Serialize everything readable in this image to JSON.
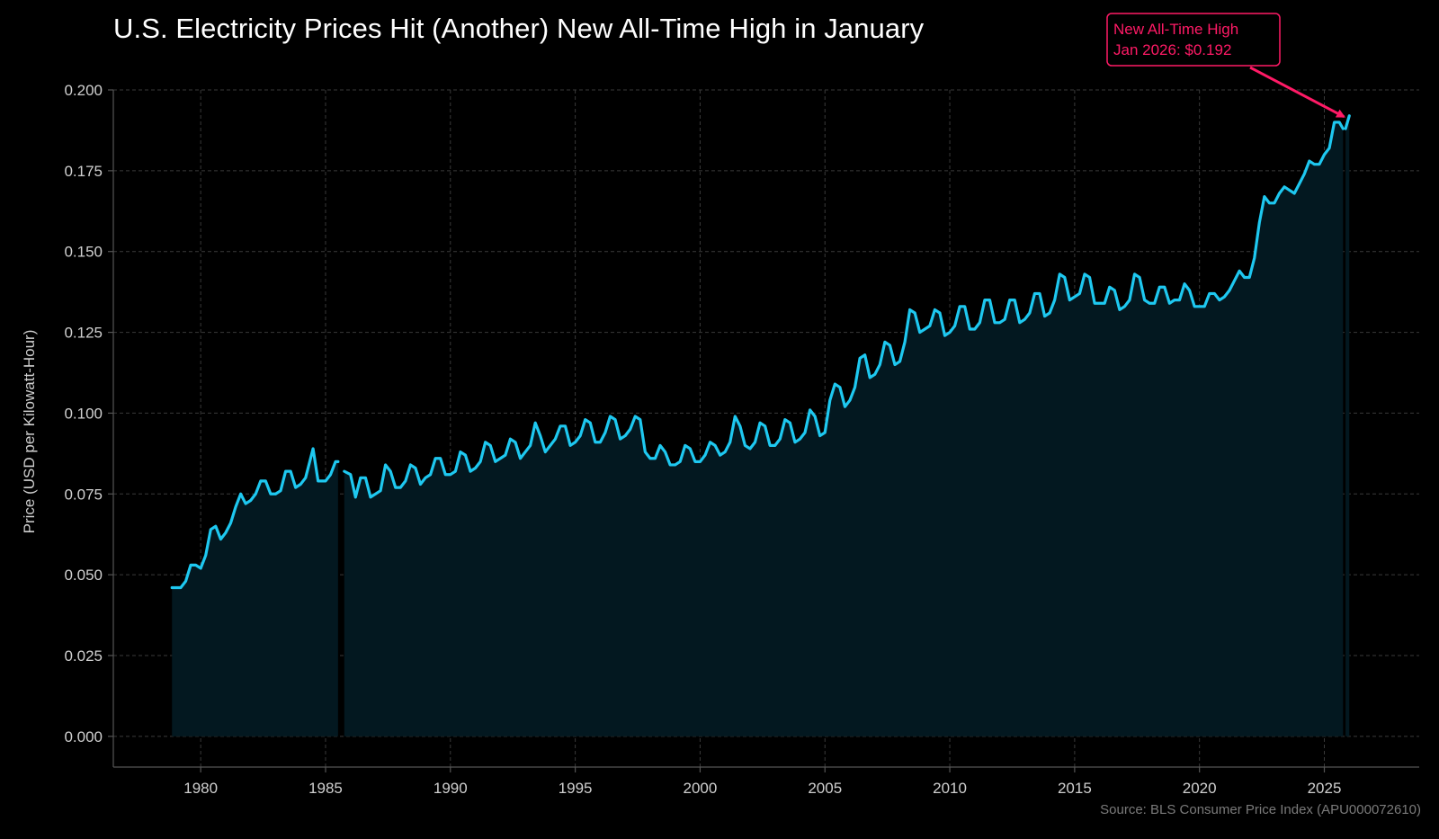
{
  "title": "U.S. Electricity Prices Hit (Another) New All-Time High in January",
  "source": "Source: BLS Consumer Price Index (APU000072610)",
  "annotation": {
    "line1": "New All-Time High",
    "line2": "Jan 2026: $0.192",
    "color": "#ff1a66",
    "x": 2026.0,
    "y": 0.192
  },
  "colors": {
    "line": "#1ec8f0",
    "fill": "#031820",
    "grid": "#3a3a3a",
    "axis": "#555555",
    "text": "#cfcfcf"
  },
  "chart_data": {
    "type": "line",
    "title": "U.S. Electricity Prices Hit (Another) New All-Time High in January",
    "xlabel": "",
    "ylabel": "Price (USD per Kilowatt-Hour)",
    "xlim": [
      1976.5,
      2028.8
    ],
    "ylim": [
      -0.0095,
      0.2
    ],
    "grid": true,
    "x_ticks": [
      1980,
      1985,
      1990,
      1995,
      2000,
      2005,
      2010,
      2015,
      2020,
      2025
    ],
    "y_ticks": [
      0.0,
      0.025,
      0.05,
      0.075,
      0.1,
      0.125,
      0.15,
      0.175,
      0.2
    ],
    "y_tick_labels": [
      "0.000",
      "0.025",
      "0.050",
      "0.075",
      "0.100",
      "0.125",
      "0.150",
      "0.175",
      "0.200"
    ],
    "gaps": [
      [
        1985.5,
        1985.75
      ],
      [
        2025.75,
        2025.85
      ]
    ],
    "series": [
      {
        "type": "line_with_fill",
        "x": [
          1978.85,
          1979.2,
          1979.4,
          1979.6,
          1979.8,
          1980.0,
          1980.2,
          1980.4,
          1980.6,
          1980.8,
          1981.0,
          1981.2,
          1981.4,
          1981.6,
          1981.8,
          1982.0,
          1982.2,
          1982.4,
          1982.6,
          1982.8,
          1983.0,
          1983.2,
          1983.4,
          1983.6,
          1983.8,
          1984.0,
          1984.2,
          1984.5,
          1984.7,
          1985.0,
          1985.2,
          1985.4,
          1985.5,
          1985.75,
          1986.0,
          1986.2,
          1986.4,
          1986.6,
          1986.8,
          1987.0,
          1987.2,
          1987.4,
          1987.6,
          1987.8,
          1988.0,
          1988.2,
          1988.4,
          1988.6,
          1988.8,
          1989.0,
          1989.2,
          1989.4,
          1989.6,
          1989.8,
          1990.0,
          1990.2,
          1990.4,
          1990.6,
          1990.8,
          1991.0,
          1991.2,
          1991.4,
          1991.6,
          1991.8,
          1992.0,
          1992.2,
          1992.4,
          1992.6,
          1992.8,
          1993.0,
          1993.2,
          1993.4,
          1993.6,
          1993.8,
          1994.0,
          1994.2,
          1994.4,
          1994.6,
          1994.8,
          1995.0,
          1995.2,
          1995.4,
          1995.6,
          1995.8,
          1996.0,
          1996.2,
          1996.4,
          1996.6,
          1996.8,
          1997.0,
          1997.2,
          1997.4,
          1997.6,
          1997.8,
          1998.0,
          1998.2,
          1998.4,
          1998.6,
          1998.8,
          1999.0,
          1999.2,
          1999.4,
          1999.6,
          1999.8,
          2000.0,
          2000.2,
          2000.4,
          2000.6,
          2000.8,
          2001.0,
          2001.2,
          2001.4,
          2001.6,
          2001.8,
          2002.0,
          2002.2,
          2002.4,
          2002.6,
          2002.8,
          2003.0,
          2003.2,
          2003.4,
          2003.6,
          2003.8,
          2004.0,
          2004.2,
          2004.4,
          2004.6,
          2004.8,
          2005.0,
          2005.2,
          2005.4,
          2005.6,
          2005.8,
          2006.0,
          2006.2,
          2006.4,
          2006.6,
          2006.8,
          2007.0,
          2007.2,
          2007.4,
          2007.6,
          2007.8,
          2008.0,
          2008.2,
          2008.4,
          2008.6,
          2008.8,
          2009.0,
          2009.2,
          2009.4,
          2009.6,
          2009.8,
          2010.0,
          2010.2,
          2010.4,
          2010.6,
          2010.8,
          2011.0,
          2011.2,
          2011.4,
          2011.6,
          2011.8,
          2012.0,
          2012.2,
          2012.4,
          2012.6,
          2012.8,
          2013.0,
          2013.2,
          2013.4,
          2013.6,
          2013.8,
          2014.0,
          2014.2,
          2014.4,
          2014.6,
          2014.8,
          2015.0,
          2015.2,
          2015.4,
          2015.6,
          2015.8,
          2016.0,
          2016.2,
          2016.4,
          2016.6,
          2016.8,
          2017.0,
          2017.2,
          2017.4,
          2017.6,
          2017.8,
          2018.0,
          2018.2,
          2018.4,
          2018.6,
          2018.8,
          2019.0,
          2019.2,
          2019.4,
          2019.6,
          2019.8,
          2020.0,
          2020.2,
          2020.4,
          2020.6,
          2020.8,
          2021.0,
          2021.2,
          2021.4,
          2021.6,
          2021.8,
          2022.0,
          2022.2,
          2022.4,
          2022.6,
          2022.8,
          2023.0,
          2023.2,
          2023.4,
          2023.6,
          2023.8,
          2024.0,
          2024.2,
          2024.4,
          2024.6,
          2024.8,
          2025.0,
          2025.2,
          2025.4,
          2025.6,
          2025.75,
          2025.85,
          2026.0
        ],
        "y": [
          0.046,
          0.046,
          0.048,
          0.053,
          0.053,
          0.052,
          0.056,
          0.064,
          0.065,
          0.061,
          0.063,
          0.066,
          0.071,
          0.075,
          0.072,
          0.073,
          0.075,
          0.079,
          0.079,
          0.075,
          0.075,
          0.076,
          0.082,
          0.082,
          0.077,
          0.078,
          0.08,
          0.089,
          0.079,
          0.079,
          0.081,
          0.085,
          0.085,
          0.082,
          0.081,
          0.074,
          0.08,
          0.08,
          0.074,
          0.075,
          0.076,
          0.084,
          0.082,
          0.077,
          0.077,
          0.079,
          0.084,
          0.083,
          0.078,
          0.08,
          0.081,
          0.086,
          0.086,
          0.081,
          0.081,
          0.082,
          0.088,
          0.087,
          0.082,
          0.083,
          0.085,
          0.091,
          0.09,
          0.085,
          0.086,
          0.087,
          0.092,
          0.091,
          0.086,
          0.088,
          0.09,
          0.097,
          0.093,
          0.088,
          0.09,
          0.092,
          0.096,
          0.096,
          0.09,
          0.091,
          0.093,
          0.098,
          0.097,
          0.091,
          0.091,
          0.094,
          0.099,
          0.098,
          0.092,
          0.093,
          0.095,
          0.099,
          0.098,
          0.088,
          0.086,
          0.086,
          0.09,
          0.088,
          0.084,
          0.084,
          0.085,
          0.09,
          0.089,
          0.085,
          0.085,
          0.087,
          0.091,
          0.09,
          0.087,
          0.088,
          0.091,
          0.099,
          0.096,
          0.09,
          0.089,
          0.091,
          0.097,
          0.096,
          0.09,
          0.09,
          0.092,
          0.098,
          0.097,
          0.091,
          0.092,
          0.094,
          0.101,
          0.099,
          0.093,
          0.094,
          0.104,
          0.109,
          0.108,
          0.102,
          0.104,
          0.108,
          0.117,
          0.118,
          0.111,
          0.112,
          0.115,
          0.122,
          0.121,
          0.115,
          0.116,
          0.122,
          0.132,
          0.131,
          0.125,
          0.126,
          0.127,
          0.132,
          0.131,
          0.124,
          0.125,
          0.127,
          0.133,
          0.133,
          0.126,
          0.126,
          0.128,
          0.135,
          0.135,
          0.128,
          0.128,
          0.129,
          0.135,
          0.135,
          0.128,
          0.129,
          0.131,
          0.137,
          0.137,
          0.13,
          0.131,
          0.135,
          0.143,
          0.142,
          0.135,
          0.136,
          0.137,
          0.143,
          0.142,
          0.134,
          0.134,
          0.134,
          0.139,
          0.138,
          0.132,
          0.133,
          0.135,
          0.143,
          0.142,
          0.135,
          0.134,
          0.134,
          0.139,
          0.139,
          0.134,
          0.135,
          0.135,
          0.14,
          0.138,
          0.133,
          0.133,
          0.133,
          0.137,
          0.137,
          0.135,
          0.136,
          0.138,
          0.141,
          0.144,
          0.142,
          0.142,
          0.148,
          0.159,
          0.167,
          0.165,
          0.165,
          0.168,
          0.17,
          0.169,
          0.168,
          0.171,
          0.174,
          0.178,
          0.177,
          0.177,
          0.18,
          0.182,
          0.19,
          0.19,
          0.188,
          0.188,
          0.192
        ]
      }
    ]
  }
}
